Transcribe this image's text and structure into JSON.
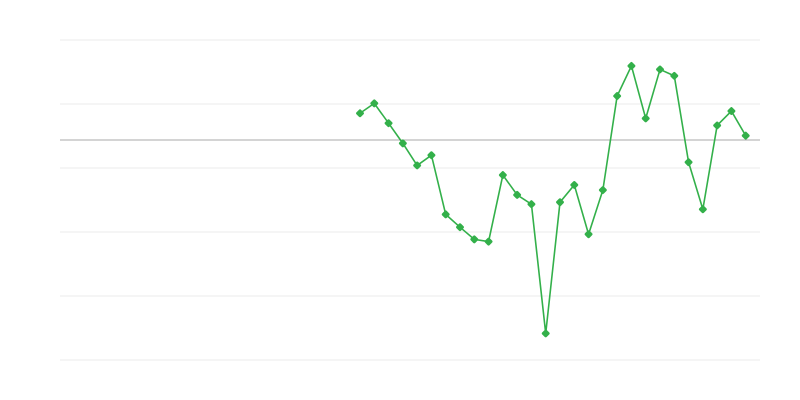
{
  "chart_data": {
    "type": "line",
    "title": "",
    "xlabel": "",
    "ylabel": "",
    "xlim": [
      0,
      49
    ],
    "ylim": [
      0,
      100
    ],
    "grid": true,
    "gridlines": [
      0,
      20,
      40,
      60,
      80,
      100
    ],
    "baseline": 68.75,
    "legend": "none",
    "colors": {
      "series": "#33b04a",
      "grid": "#ebebeb",
      "baseline": "#aaaaaa"
    },
    "series": [
      {
        "x": [
          21,
          22,
          23,
          24,
          25,
          26,
          27,
          28,
          29,
          30,
          31,
          32,
          33,
          34,
          35,
          36,
          37,
          38,
          39,
          40,
          41,
          42,
          43,
          44,
          45,
          46,
          47,
          48
        ],
        "values": [
          77.1,
          80.2,
          74.0,
          67.7,
          60.8,
          64.0,
          45.5,
          41.5,
          37.7,
          37.0,
          57.8,
          51.6,
          48.7,
          8.3,
          49.3,
          54.7,
          39.3,
          53.1,
          82.5,
          91.9,
          75.5,
          90.8,
          88.8,
          61.8,
          47.1,
          73.3,
          77.8,
          70.1
        ]
      }
    ]
  }
}
